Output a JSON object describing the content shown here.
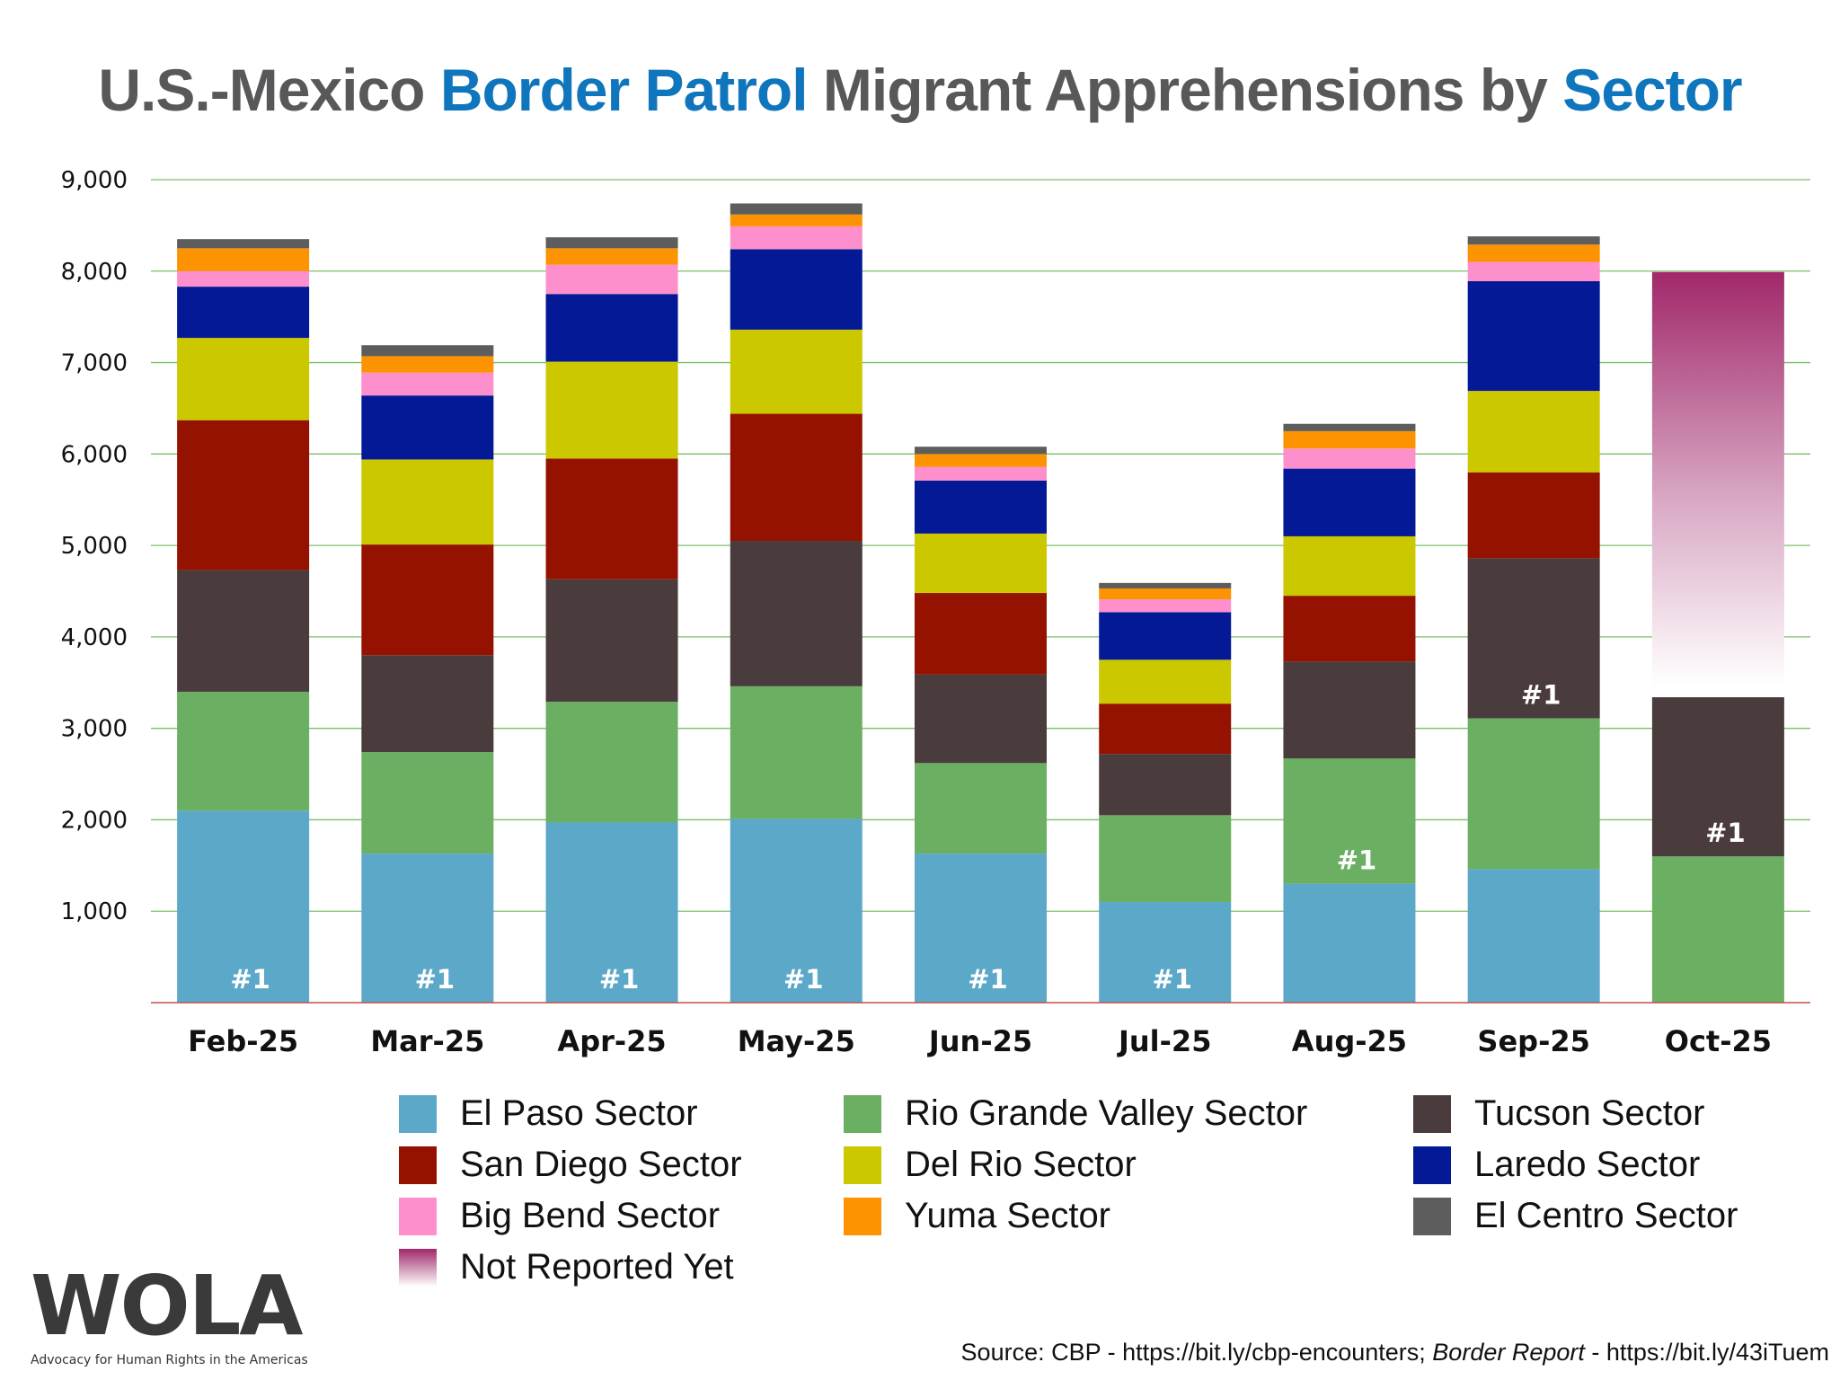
{
  "title": {
    "part1": "U.S.-Mexico ",
    "part2": "Border Patrol",
    "part3": " Migrant Apprehensions by ",
    "part4": "Sector",
    "accent": "#0f75bc",
    "base_color": "#58585a"
  },
  "chart_data": {
    "type": "bar",
    "stacked": true,
    "categories": [
      "Feb-25",
      "Mar-25",
      "Apr-25",
      "May-25",
      "Jun-25",
      "Jul-25",
      "Aug-25",
      "Sep-25",
      "Oct-25"
    ],
    "ylim": [
      0,
      9000
    ],
    "yticks": [
      "1,000",
      "2,000",
      "3,000",
      "4,000",
      "5,000",
      "6,000",
      "7,000",
      "8,000",
      "9,000"
    ],
    "ytick_values": [
      1000,
      2000,
      3000,
      4000,
      5000,
      6000,
      7000,
      8000,
      9000
    ],
    "grid": true,
    "legend_placement": "bottom",
    "series": [
      {
        "name": "El Paso Sector",
        "color": "#5ba8c9",
        "values": [
          2100,
          1630,
          1970,
          2010,
          1630,
          1100,
          1300,
          1460,
          0
        ]
      },
      {
        "name": "Rio Grande Valley Sector",
        "color": "#6aaf62",
        "values": [
          1300,
          1110,
          1320,
          1450,
          990,
          950,
          1370,
          1650,
          1600
        ]
      },
      {
        "name": "Tucson Sector",
        "color": "#4a3c3d",
        "values": [
          1330,
          1060,
          1340,
          1590,
          970,
          670,
          1060,
          1750,
          1740
        ]
      },
      {
        "name": "San Diego Sector",
        "color": "#951201",
        "values": [
          1640,
          1210,
          1320,
          1390,
          890,
          550,
          720,
          940,
          0
        ]
      },
      {
        "name": "Del Rio Sector",
        "color": "#cbc800",
        "values": [
          900,
          930,
          1060,
          920,
          650,
          480,
          650,
          890,
          0
        ]
      },
      {
        "name": "Laredo Sector",
        "color": "#031996",
        "values": [
          560,
          700,
          740,
          880,
          580,
          520,
          740,
          1200,
          0
        ]
      },
      {
        "name": "Big Bend Sector",
        "color": "#fd8fcc",
        "values": [
          170,
          250,
          320,
          250,
          150,
          140,
          220,
          210,
          0
        ]
      },
      {
        "name": "Yuma Sector",
        "color": "#fd9300",
        "values": [
          250,
          180,
          180,
          130,
          140,
          120,
          190,
          190,
          0
        ]
      },
      {
        "name": "El Centro Sector",
        "color": "#5d5d5d",
        "values": [
          100,
          120,
          120,
          120,
          80,
          60,
          80,
          90,
          0
        ]
      },
      {
        "name": "Not Reported Yet",
        "color": "#a1286a",
        "gradient": true,
        "values": [
          0,
          0,
          0,
          0,
          0,
          0,
          0,
          0,
          4650
        ]
      }
    ],
    "annotations": {
      "label": "#1",
      "top_sector_per_month": [
        "El Paso Sector",
        "El Paso Sector",
        "El Paso Sector",
        "El Paso Sector",
        "El Paso Sector",
        "El Paso Sector",
        "Rio Grande Valley Sector",
        "Tucson Sector",
        "Tucson Sector"
      ]
    }
  },
  "legend": {
    "rows": [
      [
        "El Paso Sector",
        "Rio Grande Valley Sector",
        "Tucson Sector"
      ],
      [
        "San Diego Sector",
        "Del Rio Sector",
        "Laredo Sector"
      ],
      [
        "Big Bend Sector",
        "Yuma Sector",
        "El Centro Sector"
      ],
      [
        "Not Reported Yet"
      ]
    ]
  },
  "logo": {
    "word": "WOLA",
    "tagline": "Advocacy for Human Rights in the Americas"
  },
  "source": {
    "prefix": "Source: CBP - https://bit.ly/cbp-encounters; ",
    "italic": "Border Report",
    "suffix": " - https://bit.ly/43iTuem"
  }
}
